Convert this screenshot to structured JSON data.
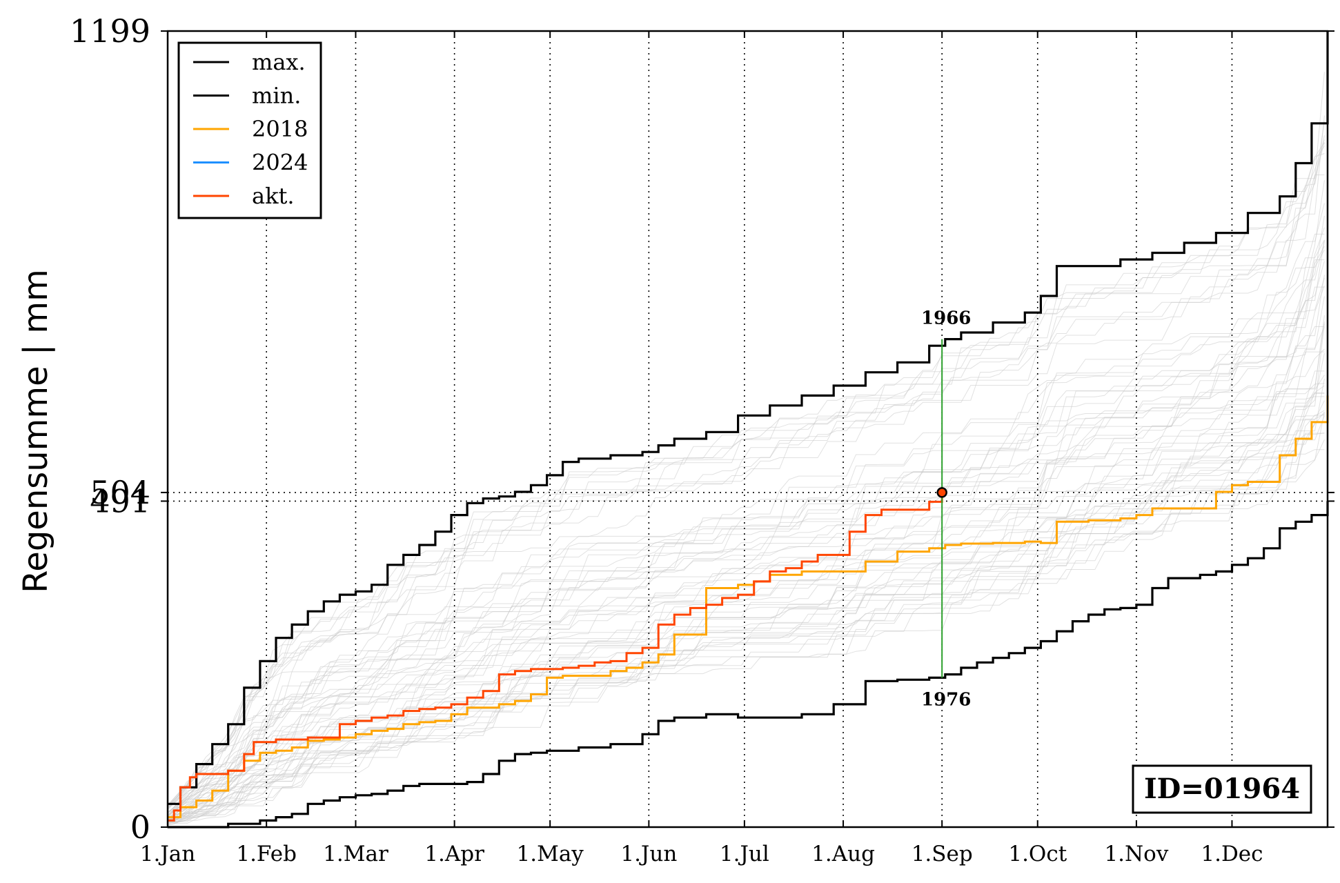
{
  "chart_data": {
    "type": "line",
    "title": "",
    "xlabel": "",
    "ylabel": "Regensumme | mm",
    "ylim": [
      0,
      1199
    ],
    "yticks": [
      0,
      491,
      504,
      1199
    ],
    "yticks_labels": [
      "0",
      "491",
      "504",
      "1199"
    ],
    "x_unit": "day of year",
    "xlim": [
      1,
      365
    ],
    "xticks": [
      {
        "day": 1,
        "label": "1.Jan"
      },
      {
        "day": 32,
        "label": "1.Feb"
      },
      {
        "day": 60,
        "label": "1.Mar"
      },
      {
        "day": 91,
        "label": "1.Apr"
      },
      {
        "day": 121,
        "label": "1.May"
      },
      {
        "day": 152,
        "label": "1.Jun"
      },
      {
        "day": 182,
        "label": "1.Jul"
      },
      {
        "day": 213,
        "label": "1.Aug"
      },
      {
        "day": 244,
        "label": "1.Sep"
      },
      {
        "day": 274,
        "label": "1.Oct"
      },
      {
        "day": 305,
        "label": "1.Nov"
      },
      {
        "day": 335,
        "label": "1.Dec"
      }
    ],
    "grid": "vertical dotted at month starts",
    "legend_position": "top-left",
    "series": [
      {
        "name": "max.",
        "color": "#000000",
        "x": [
          1,
          5,
          10,
          15,
          20,
          25,
          30,
          35,
          40,
          45,
          50,
          55,
          60,
          65,
          70,
          75,
          80,
          85,
          90,
          95,
          100,
          105,
          110,
          115,
          120,
          125,
          130,
          140,
          150,
          155,
          160,
          170,
          180,
          190,
          200,
          210,
          220,
          230,
          240,
          245,
          250,
          260,
          270,
          275,
          280,
          290,
          300,
          310,
          320,
          330,
          340,
          350,
          355,
          360,
          365
        ],
        "y": [
          35,
          60,
          95,
          125,
          155,
          210,
          250,
          285,
          305,
          325,
          340,
          350,
          355,
          365,
          395,
          410,
          425,
          445,
          470,
          488,
          495,
          498,
          505,
          515,
          530,
          550,
          555,
          560,
          565,
          575,
          585,
          595,
          620,
          635,
          650,
          665,
          685,
          700,
          725,
          735,
          745,
          760,
          775,
          800,
          845,
          845,
          855,
          865,
          880,
          895,
          925,
          950,
          1000,
          1060,
          1199
        ]
      },
      {
        "name": "min.",
        "color": "#000000",
        "x": [
          1,
          15,
          20,
          30,
          35,
          40,
          45,
          50,
          55,
          60,
          65,
          70,
          75,
          80,
          90,
          95,
          100,
          105,
          110,
          115,
          120,
          130,
          140,
          150,
          155,
          160,
          170,
          180,
          185,
          190,
          200,
          210,
          220,
          230,
          240,
          245,
          250,
          255,
          260,
          265,
          270,
          275,
          280,
          285,
          290,
          295,
          300,
          305,
          310,
          315,
          320,
          325,
          330,
          335,
          340,
          345,
          350,
          355,
          360,
          365
        ],
        "y": [
          0,
          0,
          5,
          10,
          15,
          20,
          35,
          40,
          45,
          48,
          50,
          55,
          62,
          65,
          65,
          68,
          80,
          100,
          110,
          112,
          115,
          120,
          125,
          140,
          160,
          165,
          170,
          165,
          165,
          165,
          170,
          185,
          220,
          222,
          225,
          230,
          240,
          248,
          255,
          262,
          270,
          280,
          295,
          310,
          320,
          328,
          330,
          335,
          360,
          375,
          375,
          380,
          385,
          395,
          405,
          420,
          450,
          460,
          470,
          491
        ]
      },
      {
        "name": "2018",
        "color": "#FFA500",
        "x": [
          1,
          5,
          10,
          15,
          20,
          25,
          30,
          35,
          40,
          45,
          50,
          55,
          60,
          65,
          70,
          75,
          80,
          85,
          90,
          95,
          100,
          105,
          110,
          115,
          120,
          125,
          130,
          140,
          145,
          150,
          155,
          160,
          170,
          180,
          185,
          190,
          200,
          210,
          220,
          230,
          240,
          245,
          250,
          260,
          270,
          275,
          280,
          290,
          300,
          305,
          310,
          320,
          330,
          335,
          340,
          350,
          355,
          360,
          365
        ],
        "y": [
          15,
          30,
          40,
          55,
          85,
          100,
          112,
          115,
          120,
          130,
          132,
          135,
          140,
          145,
          148,
          155,
          158,
          160,
          170,
          180,
          180,
          185,
          190,
          200,
          225,
          228,
          228,
          235,
          240,
          248,
          260,
          290,
          360,
          365,
          370,
          380,
          385,
          385,
          400,
          415,
          420,
          425,
          427,
          428,
          430,
          428,
          460,
          462,
          465,
          470,
          480,
          480,
          505,
          515,
          520,
          560,
          585,
          610,
          650
        ]
      },
      {
        "name": "2024",
        "color": "#1E90FF",
        "x": [],
        "y": []
      },
      {
        "name": "akt.",
        "color": "#FF4500",
        "x": [
          1,
          3,
          5,
          8,
          10,
          15,
          20,
          25,
          28,
          32,
          35,
          40,
          45,
          50,
          55,
          58,
          60,
          65,
          70,
          75,
          80,
          85,
          90,
          95,
          100,
          105,
          110,
          115,
          120,
          125,
          130,
          135,
          140,
          145,
          150,
          155,
          160,
          165,
          170,
          175,
          180,
          185,
          190,
          195,
          200,
          205,
          210,
          215,
          220,
          225,
          230,
          235,
          240,
          244
        ],
        "y": [
          10,
          25,
          60,
          75,
          80,
          80,
          85,
          110,
          128,
          128,
          132,
          132,
          135,
          135,
          155,
          155,
          160,
          165,
          168,
          175,
          178,
          180,
          185,
          195,
          205,
          230,
          235,
          238,
          238,
          240,
          243,
          248,
          250,
          262,
          270,
          305,
          320,
          330,
          335,
          345,
          350,
          370,
          385,
          390,
          400,
          410,
          410,
          445,
          470,
          478,
          478,
          478,
          490,
          504
        ]
      }
    ],
    "current_point": {
      "x": 244,
      "y": 504
    },
    "annotations": [
      {
        "text": "1966",
        "x": 244,
        "y": 735,
        "note": "year of max at current day"
      },
      {
        "text": "1976",
        "x": 244,
        "y": 225,
        "note": "year of min at current day"
      }
    ],
    "horizontal_reference_lines": [
      504,
      491
    ],
    "colors": {
      "max": "#000000",
      "min": "#000000",
      "y2018": "#FFA500",
      "y2024": "#1E90FF",
      "akt": "#FF4500",
      "background_years": "#c8c8c8",
      "current_day_line": "#2ca02c",
      "current_point_fill": "#FF4500"
    }
  },
  "id_box": {
    "text": "ID=01964"
  }
}
